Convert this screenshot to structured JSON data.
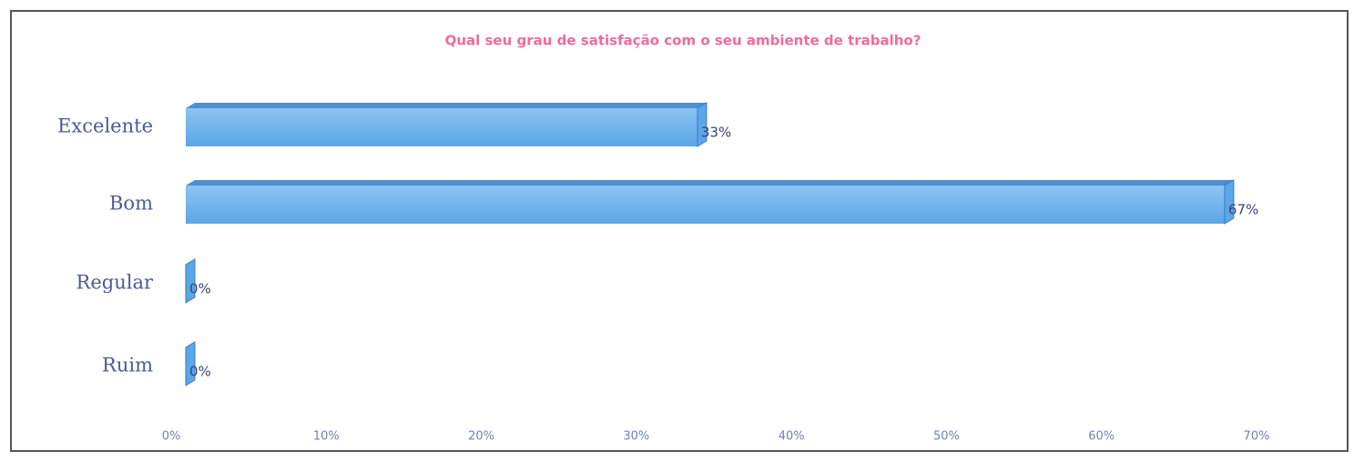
{
  "chart_data": {
    "type": "bar",
    "orientation": "horizontal",
    "title": "Qual seu grau de satisfação com o seu ambiente de trabalho?",
    "categories": [
      "Excelente",
      "Bom",
      "Regular",
      "Ruim"
    ],
    "values": [
      33,
      67,
      0,
      0
    ],
    "value_labels": [
      "33%",
      "67%",
      "0%",
      "0%"
    ],
    "color": "#5aa6e6",
    "xlim": [
      0,
      70
    ],
    "xticks": [
      {
        "value": 0,
        "label": "0%"
      },
      {
        "value": 10,
        "label": "10%"
      },
      {
        "value": 20,
        "label": "20%"
      },
      {
        "value": 30,
        "label": "30%"
      },
      {
        "value": 40,
        "label": "40%"
      },
      {
        "value": 50,
        "label": "50%"
      },
      {
        "value": 60,
        "label": "60%"
      },
      {
        "value": 70,
        "label": "70%"
      }
    ],
    "grid": false
  }
}
